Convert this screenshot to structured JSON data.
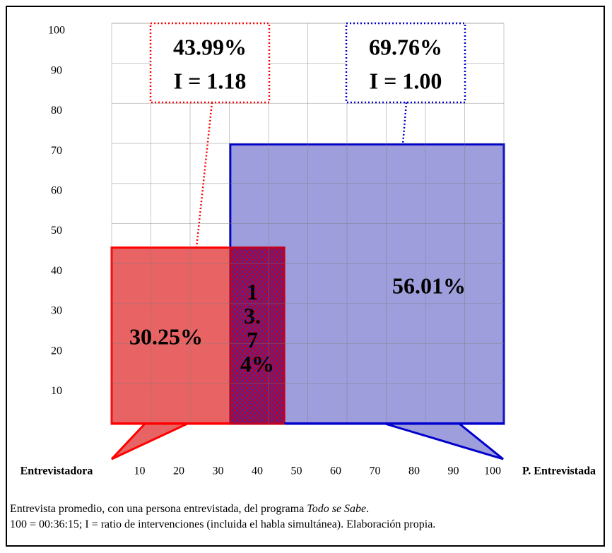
{
  "chart_data": {
    "type": "overlap",
    "xlim": [
      0,
      100
    ],
    "ylim": [
      0,
      100
    ],
    "xticks": [
      10,
      20,
      30,
      40,
      50,
      60,
      70,
      80,
      90,
      100
    ],
    "yticks": [
      10,
      20,
      30,
      40,
      50,
      60,
      70,
      80,
      90,
      100
    ],
    "grid": true,
    "x_label_left": "Entrevistadora",
    "x_label_right": "P. Entrevistada",
    "series": [
      {
        "name": "Entrevistadora",
        "color": "#ff0000",
        "fill": "#e86464",
        "value": 43.99,
        "value_label": "43.99%",
        "index_label": "I = 1.18",
        "own": 30.25,
        "own_label": "30.25%"
      },
      {
        "name": "P. Entrevistada",
        "color": "#0000cc",
        "fill": "#9e9edc",
        "value": 69.76,
        "value_label": "69.76%",
        "index_label": "I = 1.00",
        "own": 56.01,
        "own_label": "56.01%"
      }
    ],
    "overlap": {
      "value": 13.74,
      "value_label": "13.74%",
      "color": "#c00020"
    },
    "caption": [
      "Entrevista promedio, con una persona entrevistada, del programa ",
      "Todo se Sabe",
      ".",
      "100 = 00:36:15; I = ratio de intervenciones (incluida el habla simultánea). Elaboración propia."
    ]
  }
}
